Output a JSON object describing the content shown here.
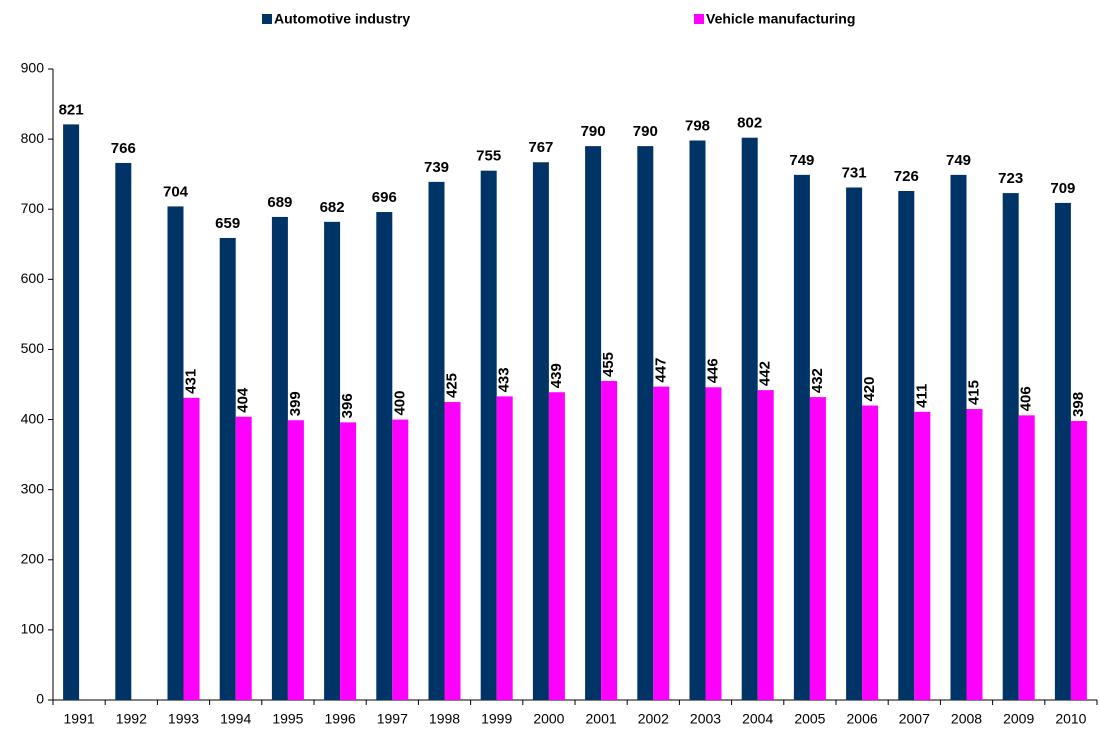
{
  "chart_data": {
    "type": "bar",
    "categories": [
      "1991",
      "1992",
      "1993",
      "1994",
      "1995",
      "1996",
      "1997",
      "1998",
      "1999",
      "2000",
      "2001",
      "2002",
      "2003",
      "2004",
      "2005",
      "2006",
      "2007",
      "2008",
      "2009",
      "2010"
    ],
    "series": [
      {
        "name": "Automotive industry",
        "color": "#003366",
        "values": [
          821,
          766,
          704,
          659,
          689,
          682,
          696,
          739,
          755,
          767,
          790,
          790,
          798,
          802,
          749,
          731,
          726,
          749,
          723,
          709
        ]
      },
      {
        "name": "Vehicle manufacturing",
        "color": "#ff00ff",
        "values": [
          null,
          null,
          431,
          404,
          399,
          396,
          400,
          425,
          433,
          439,
          455,
          447,
          446,
          442,
          432,
          420,
          411,
          415,
          406,
          398
        ]
      }
    ],
    "ylim": [
      0,
      900
    ],
    "yticks": [
      0,
      100,
      200,
      300,
      400,
      500,
      600,
      700,
      800,
      900
    ],
    "grid": false,
    "legend": "top"
  }
}
